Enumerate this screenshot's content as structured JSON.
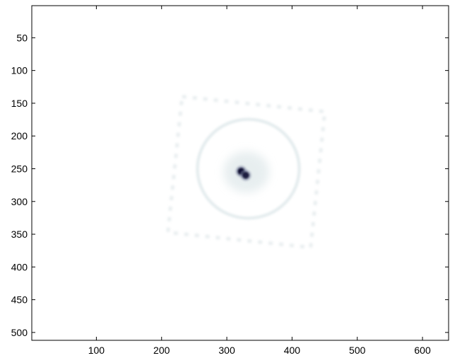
{
  "chart_data": {
    "type": "heatmap",
    "title": "",
    "xlabel": "",
    "ylabel": "",
    "xlim": [
      1,
      640
    ],
    "ylim": [
      1,
      512
    ],
    "y_axis_direction": "reversed",
    "xticks": [
      100,
      200,
      300,
      400,
      500,
      600
    ],
    "yticks": [
      50,
      100,
      150,
      200,
      250,
      300,
      350,
      400,
      450,
      500
    ],
    "colormap": "bone (inverted, white = low, dark navy = high)",
    "grid": false,
    "legend": "none",
    "features": [
      {
        "kind": "peak",
        "center": [
          322,
          254
        ],
        "intensity": 1.0
      },
      {
        "kind": "peak",
        "center": [
          329,
          260
        ],
        "intensity": 0.9
      },
      {
        "kind": "diffuse_halo",
        "center": [
          330,
          255
        ],
        "radius": 35,
        "intensity": 0.12
      },
      {
        "kind": "ring",
        "center": [
          333,
          250
        ],
        "radius": 78,
        "intensity": 0.07
      },
      {
        "kind": "square_pattern",
        "center": [
          330,
          255
        ],
        "half_width": 110,
        "intensity": 0.04
      }
    ],
    "colors": {
      "low": "#ffffff",
      "mid": "#dfe8ea",
      "high": "#0b1030"
    }
  }
}
